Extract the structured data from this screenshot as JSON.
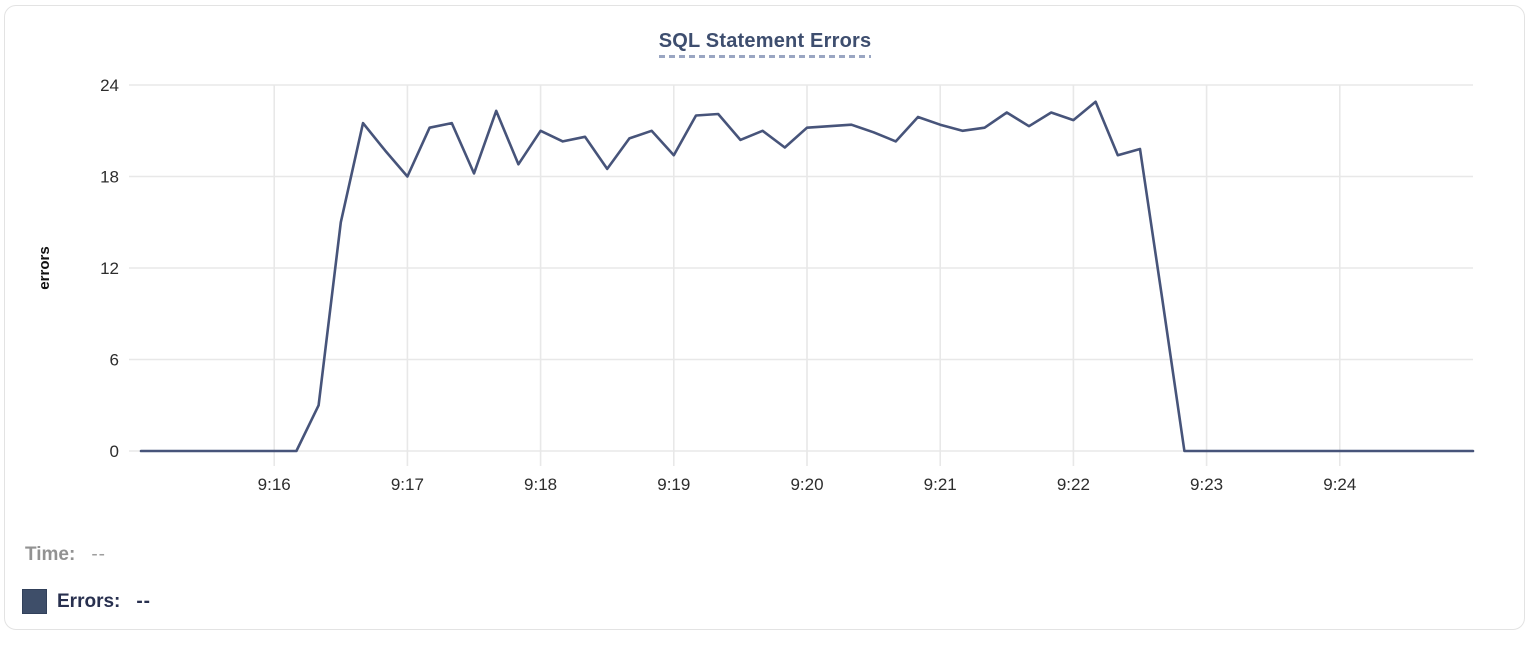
{
  "chart_data": {
    "type": "line",
    "title": "SQL Statement Errors",
    "xlabel": "",
    "ylabel": "errors",
    "ylim": [
      0,
      24
    ],
    "yticks": [
      0,
      6,
      12,
      18,
      24
    ],
    "xticks": [
      "9:16",
      "9:17",
      "9:18",
      "9:19",
      "9:20",
      "9:21",
      "9:22",
      "9:23",
      "9:24"
    ],
    "x_range": [
      "9:15:00",
      "9:25:00"
    ],
    "grid": true,
    "legend_position": "bottom-left",
    "series": [
      {
        "name": "Errors",
        "color": "#47547a",
        "points": [
          [
            "9:15:00",
            0
          ],
          [
            "9:15:10",
            0
          ],
          [
            "9:15:20",
            0
          ],
          [
            "9:15:30",
            0
          ],
          [
            "9:15:40",
            0
          ],
          [
            "9:15:50",
            0
          ],
          [
            "9:16:00",
            0
          ],
          [
            "9:16:10",
            0
          ],
          [
            "9:16:20",
            3
          ],
          [
            "9:16:30",
            15
          ],
          [
            "9:16:40",
            21.5
          ],
          [
            "9:16:50",
            19.7
          ],
          [
            "9:17:00",
            18
          ],
          [
            "9:17:10",
            21.2
          ],
          [
            "9:17:20",
            21.5
          ],
          [
            "9:17:30",
            18.2
          ],
          [
            "9:17:40",
            22.3
          ],
          [
            "9:17:50",
            18.8
          ],
          [
            "9:18:00",
            21
          ],
          [
            "9:18:10",
            20.3
          ],
          [
            "9:18:20",
            20.6
          ],
          [
            "9:18:30",
            18.5
          ],
          [
            "9:18:40",
            20.5
          ],
          [
            "9:18:50",
            21
          ],
          [
            "9:19:00",
            19.4
          ],
          [
            "9:19:10",
            22
          ],
          [
            "9:19:20",
            22.1
          ],
          [
            "9:19:30",
            20.4
          ],
          [
            "9:19:40",
            21
          ],
          [
            "9:19:50",
            19.9
          ],
          [
            "9:20:00",
            21.2
          ],
          [
            "9:20:10",
            21.3
          ],
          [
            "9:20:20",
            21.4
          ],
          [
            "9:20:30",
            20.9
          ],
          [
            "9:20:40",
            20.3
          ],
          [
            "9:20:50",
            21.9
          ],
          [
            "9:21:00",
            21.4
          ],
          [
            "9:21:10",
            21
          ],
          [
            "9:21:20",
            21.2
          ],
          [
            "9:21:30",
            22.2
          ],
          [
            "9:21:40",
            21.3
          ],
          [
            "9:21:50",
            22.2
          ],
          [
            "9:22:00",
            21.7
          ],
          [
            "9:22:10",
            22.9
          ],
          [
            "9:22:20",
            19.4
          ],
          [
            "9:22:30",
            19.8
          ],
          [
            "9:22:40",
            10
          ],
          [
            "9:22:50",
            0
          ],
          [
            "9:23:00",
            0
          ],
          [
            "9:23:10",
            0
          ],
          [
            "9:23:20",
            0
          ],
          [
            "9:23:30",
            0
          ],
          [
            "9:23:40",
            0
          ],
          [
            "9:23:50",
            0
          ],
          [
            "9:24:00",
            0
          ],
          [
            "9:24:10",
            0
          ],
          [
            "9:24:20",
            0
          ],
          [
            "9:24:30",
            0
          ],
          [
            "9:24:40",
            0
          ],
          [
            "9:24:50",
            0
          ],
          [
            "9:25:00",
            0
          ]
        ]
      }
    ]
  },
  "tooltip": {
    "time_label": "Time:",
    "time_value": "--",
    "errors_label": "Errors:",
    "errors_value": "--"
  },
  "colors": {
    "line": "#47547a",
    "grid": "#e8e8e8",
    "tick_text": "#2d2d2d",
    "axis_title": "#111111",
    "title": "#3e4e6f",
    "title_underline": "#9aa6c2",
    "swatch": "#3e4e69",
    "card_border": "#e3e3e3"
  }
}
